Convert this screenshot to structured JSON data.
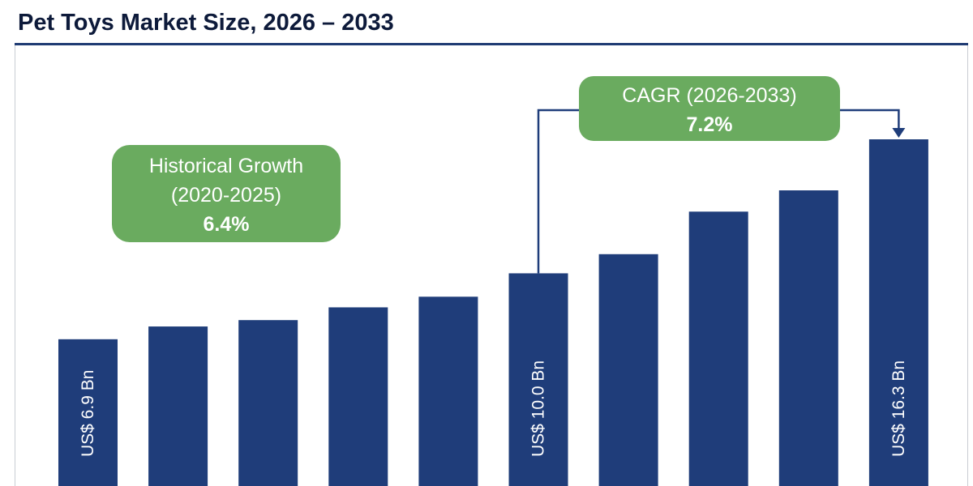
{
  "page": {
    "title": "Pet Toys Market Size, 2026 – 2033"
  },
  "colors": {
    "bar": "#1f3d7a",
    "callout": "#6aab5f",
    "title_rule": "#1f3b73",
    "arrow": "#1f3d7a"
  },
  "callouts": {
    "historical": {
      "line1": "Historical Growth",
      "line2": "(2020-2025)",
      "value": "6.4%"
    },
    "cagr": {
      "line1": "CAGR (2026-2033)",
      "value": "7.2%"
    }
  },
  "chart_data": {
    "type": "bar",
    "title": "Pet Toys Market Size, 2026 – 2033",
    "xlabel": "",
    "ylabel": "",
    "values": [
      6.9,
      7.5,
      7.8,
      8.4,
      8.9,
      10.0,
      10.9,
      12.9,
      13.9,
      16.3
    ],
    "data_labels": [
      "US$ 6.9 Bn",
      "",
      "",
      "",
      "",
      "US$ 10.0 Bn",
      "",
      "",
      "",
      "US$ 16.3 Bn"
    ],
    "ylim": [
      0,
      16.3
    ],
    "grid": false,
    "legend": "none"
  }
}
